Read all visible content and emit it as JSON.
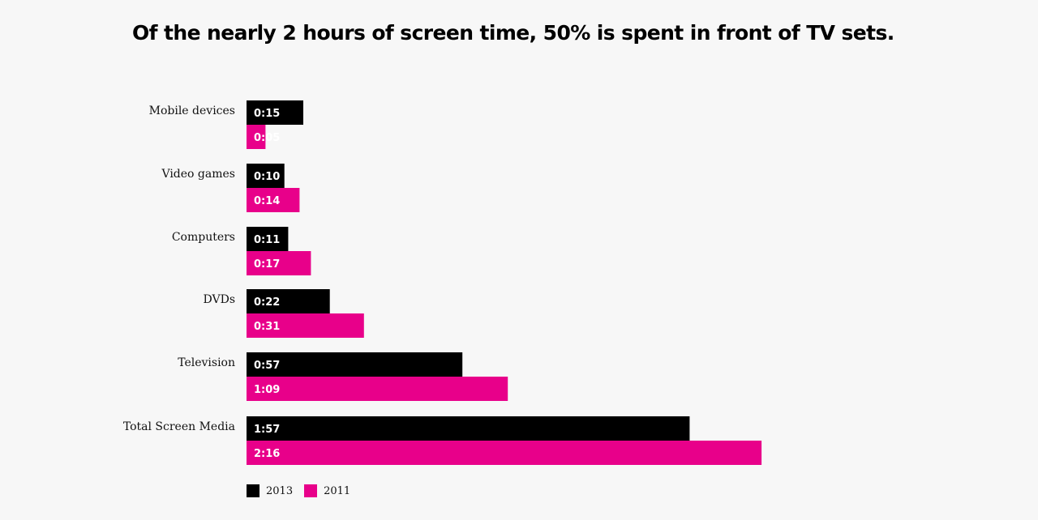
{
  "chart_data": {
    "type": "bar",
    "orientation": "horizontal",
    "title": "Of the nearly 2 hours of screen time, 50% is spent in front of TV sets.",
    "categories": [
      "Mobile devices",
      "Video games",
      "Computers",
      "DVDs",
      "Television",
      "Total Screen Media"
    ],
    "series": [
      {
        "name": "2013",
        "color": "#000000",
        "values": [
          15,
          10,
          11,
          22,
          57,
          117
        ],
        "labels": [
          "0:15",
          "0:10",
          "0:11",
          "0:22",
          "0:57",
          "1:57"
        ]
      },
      {
        "name": "2011",
        "color": "#e8008a",
        "values": [
          5,
          14,
          17,
          31,
          69,
          136
        ],
        "labels": [
          "0:05",
          "0:14",
          "0:17",
          "0:31",
          "1:09",
          "2:16"
        ]
      }
    ],
    "value_unit": "minutes",
    "grid": false,
    "legend_position": "bottom-left"
  }
}
